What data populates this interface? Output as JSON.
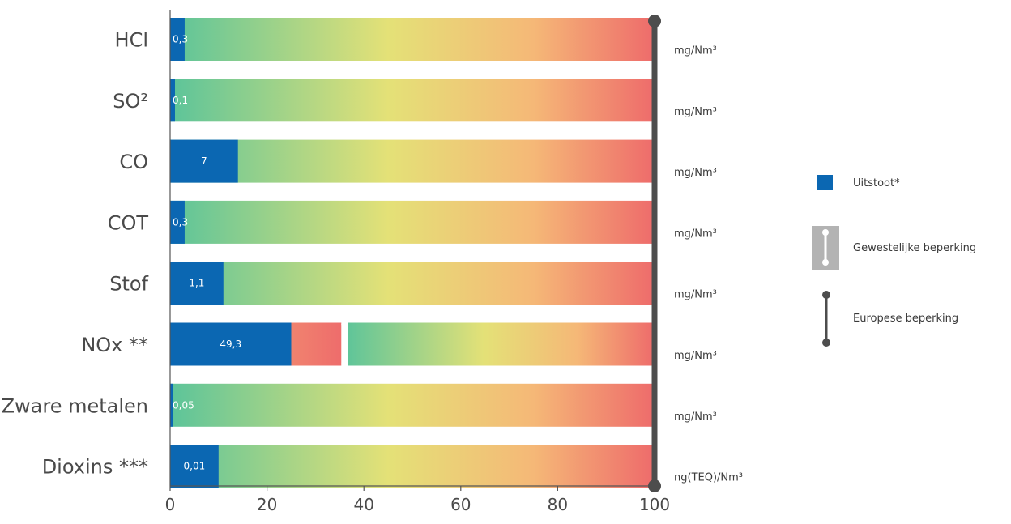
{
  "chart_data": {
    "type": "bar",
    "orientation": "horizontal",
    "categories": [
      "HCl",
      "SO²",
      "CO",
      "COT",
      "Stof",
      "NOx **",
      "Zware metalen",
      "Dioxins ***"
    ],
    "units": [
      "mg/Nm³",
      "mg/Nm³",
      "mg/Nm³",
      "mg/Nm³",
      "mg/Nm³",
      "mg/Nm³",
      "mg/Nm³",
      "ng(TEQ)/Nm³"
    ],
    "value_labels": [
      "0,3",
      "0,1",
      "7",
      "0,3",
      "1,1",
      "49,3",
      "0,05",
      "0,01"
    ],
    "values_percent": [
      3,
      1,
      14,
      3,
      11,
      25,
      0.6,
      10
    ],
    "regional_limit_percent": [
      null,
      null,
      null,
      null,
      null,
      36,
      null,
      null
    ],
    "european_limit_percent": 100,
    "xlim": [
      0,
      100
    ],
    "xticks": [
      0,
      20,
      40,
      60,
      80,
      100
    ],
    "legend": [
      {
        "label": "Uitstoot*",
        "type": "emission"
      },
      {
        "label": "Gewestelijke beperking",
        "type": "regional"
      },
      {
        "label": "Europese beperking",
        "type": "european"
      }
    ],
    "legend_position": "right"
  },
  "colors": {
    "emission": "#0b67b2",
    "gradient_start": "#5cc49a",
    "gradient_mid": "#e4e177",
    "gradient_orange": "#f5b877",
    "gradient_end": "#ee6b6b",
    "limit_line": "#4d4d4d",
    "regional_box": "#b3b3b3",
    "axis": "#555555"
  }
}
